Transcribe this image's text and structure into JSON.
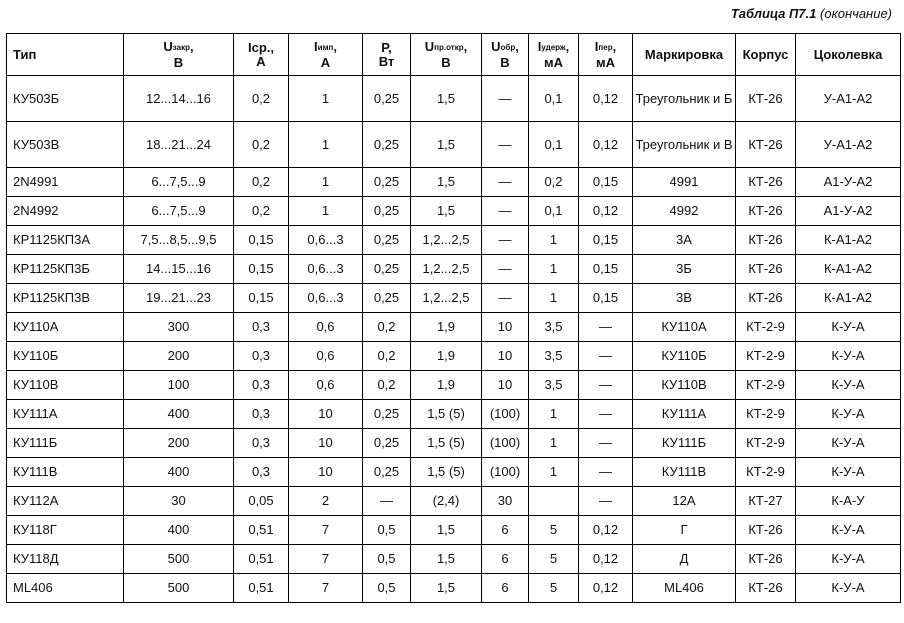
{
  "caption": {
    "title": "Таблица П7.1",
    "note": "(окончание)"
  },
  "headers": [
    {
      "main": "Тип",
      "sub": "",
      "unit": ""
    },
    {
      "main": "U",
      "sub": "закр",
      "unit": "В"
    },
    {
      "main": "Icp.,",
      "sub": "",
      "unit": "А"
    },
    {
      "main": "I",
      "sub": "имп",
      "unit": "А"
    },
    {
      "main": "P,",
      "sub": "",
      "unit": "Вт"
    },
    {
      "main": "U",
      "sub": "пр.откр",
      "unit": "В"
    },
    {
      "main": "U",
      "sub": "обр",
      "unit": "В"
    },
    {
      "main": "I",
      "sub": "удерж",
      "unit": "мА"
    },
    {
      "main": "I",
      "sub": "пер",
      "unit": "мА"
    },
    {
      "main": "Маркировка",
      "sub": "",
      "unit": ""
    },
    {
      "main": "Корпус",
      "sub": "",
      "unit": ""
    },
    {
      "main": "Цоколевка",
      "sub": "",
      "unit": ""
    }
  ],
  "rows": [
    [
      "КУ503Б",
      "12...14...16",
      "0,2",
      "1",
      "0,25",
      "1,5",
      "—",
      "0,1",
      "0,12",
      "Треугольник и Б",
      "КТ-26",
      "У-А1-А2"
    ],
    [
      "КУ503В",
      "18...21...24",
      "0,2",
      "1",
      "0,25",
      "1,5",
      "—",
      "0,1",
      "0,12",
      "Треугольник и В",
      "КТ-26",
      "У-А1-А2"
    ],
    [
      "2N4991",
      "6...7,5...9",
      "0,2",
      "1",
      "0,25",
      "1,5",
      "—",
      "0,2",
      "0,15",
      "4991",
      "КТ-26",
      "А1-У-А2"
    ],
    [
      "2N4992",
      "6...7,5...9",
      "0,2",
      "1",
      "0,25",
      "1,5",
      "—",
      "0,1",
      "0,12",
      "4992",
      "КТ-26",
      "А1-У-А2"
    ],
    [
      "КР1125КП3А",
      "7,5...8,5...9,5",
      "0,15",
      "0,6...3",
      "0,25",
      "1,2...2,5",
      "—",
      "1",
      "0,15",
      "3А",
      "КТ-26",
      "К-А1-А2"
    ],
    [
      "КР1125КП3Б",
      "14...15...16",
      "0,15",
      "0,6...3",
      "0,25",
      "1,2...2,5",
      "—",
      "1",
      "0,15",
      "3Б",
      "КТ-26",
      "К-А1-А2"
    ],
    [
      "КР1125КП3В",
      "19...21...23",
      "0,15",
      "0,6...3",
      "0,25",
      "1,2...2,5",
      "—",
      "1",
      "0,15",
      "3В",
      "КТ-26",
      "К-А1-А2"
    ],
    [
      "КУ110А",
      "300",
      "0,3",
      "0,6",
      "0,2",
      "1,9",
      "10",
      "3,5",
      "—",
      "КУ110А",
      "КТ-2-9",
      "К-У-А"
    ],
    [
      "КУ110Б",
      "200",
      "0,3",
      "0,6",
      "0,2",
      "1,9",
      "10",
      "3,5",
      "—",
      "КУ110Б",
      "КТ-2-9",
      "К-У-А"
    ],
    [
      "КУ110В",
      "100",
      "0,3",
      "0,6",
      "0,2",
      "1,9",
      "10",
      "3,5",
      "—",
      "КУ110В",
      "КТ-2-9",
      "К-У-А"
    ],
    [
      "КУ111А",
      "400",
      "0,3",
      "10",
      "0,25",
      "1,5 (5)",
      "(100)",
      "1",
      "—",
      "КУ111А",
      "КТ-2-9",
      "К-У-А"
    ],
    [
      "КУ111Б",
      "200",
      "0,3",
      "10",
      "0,25",
      "1,5 (5)",
      "(100)",
      "1",
      "—",
      "КУ111Б",
      "КТ-2-9",
      "К-У-А"
    ],
    [
      "КУ111В",
      "400",
      "0,3",
      "10",
      "0,25",
      "1,5 (5)",
      "(100)",
      "1",
      "—",
      "КУ111В",
      "КТ-2-9",
      "К-У-А"
    ],
    [
      "КУ112А",
      "30",
      "0,05",
      "2",
      "—",
      "(2,4)",
      "30",
      "",
      "—",
      "12А",
      "КТ-27",
      "К-А-У"
    ],
    [
      "КУ118Г",
      "400",
      "0,51",
      "7",
      "0,5",
      "1,5",
      "6",
      "5",
      "0,12",
      "Г",
      "КТ-26",
      "К-У-А"
    ],
    [
      "КУ118Д",
      "500",
      "0,51",
      "7",
      "0,5",
      "1,5",
      "6",
      "5",
      "0,12",
      "Д",
      "КТ-26",
      "К-У-А"
    ],
    [
      "ML406",
      "500",
      "0,51",
      "7",
      "0,5",
      "1,5",
      "6",
      "5",
      "0,12",
      "ML406",
      "КТ-26",
      "К-У-А"
    ]
  ]
}
